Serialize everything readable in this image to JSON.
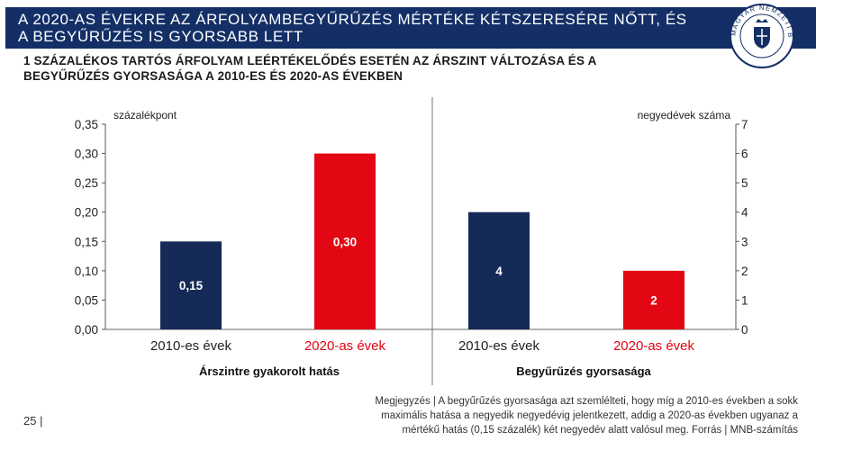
{
  "header": {
    "title_line1": "A 2020-AS ÉVEKRE AZ ÁRFOLYAMBEGYŰRŰZÉS MÉRTÉKE KÉTSZERESÉRE NŐTT, ÉS",
    "title_line2": "A BEGYŰRŰZÉS IS GYORSABB LETT",
    "seal_text": "MAGYAR NEMZETI BANK",
    "colors": {
      "banner": "#142f66",
      "navy": "#152a56",
      "red": "#e30613"
    }
  },
  "subtitle_line1": "1 SZÁZALÉKOS TARTÓS ÁRFOLYAM LEÉRTÉKELŐDÉS ESETÉN AZ ÁRSZINT VÁLTOZÁSA ÉS A",
  "subtitle_line2": "BEGYŰRŰZÉS GYORSASÁGA A 2010-ES ÉS 2020-AS ÉVEKBEN",
  "chart_data": [
    {
      "type": "bar",
      "title": "Árszintre gyakorolt hatás",
      "ylabel": "százalékpont",
      "categories": [
        "2010-es évek",
        "2020-as évek"
      ],
      "values": [
        0.15,
        0.3
      ],
      "value_labels": [
        "0,15",
        "0,30"
      ],
      "colors": [
        "#152a56",
        "#e30613"
      ],
      "ylim": [
        0,
        0.35
      ],
      "yticks": [
        "0,00",
        "0,05",
        "0,10",
        "0,15",
        "0,20",
        "0,25",
        "0,30",
        "0,35"
      ],
      "axis": "left",
      "grid": false
    },
    {
      "type": "bar",
      "title": "Begyűrűzés gyorsasága",
      "ylabel": "negyedévek száma",
      "categories": [
        "2010-es évek",
        "2020-as évek"
      ],
      "values": [
        4,
        2
      ],
      "value_labels": [
        "4",
        "2"
      ],
      "colors": [
        "#152a56",
        "#e30613"
      ],
      "ylim": [
        0,
        7
      ],
      "yticks": [
        "0",
        "1",
        "2",
        "3",
        "4",
        "5",
        "6",
        "7"
      ],
      "axis": "right",
      "grid": false
    }
  ],
  "footnote_line1": "Megjegyzés | A begyűrűzés gyorsasága azt szemlélteti, hogy míg a 2010-es években a sokk",
  "footnote_line2": "maximális hatása a negyedik negyedévig jelentkezett, addig a 2020-as években ugyanaz a",
  "footnote_line3": "mértékű hatás (0,15 százalék) két negyedév alatt valósul meg. Forrás | MNB-számítás",
  "page_number": "25 |"
}
